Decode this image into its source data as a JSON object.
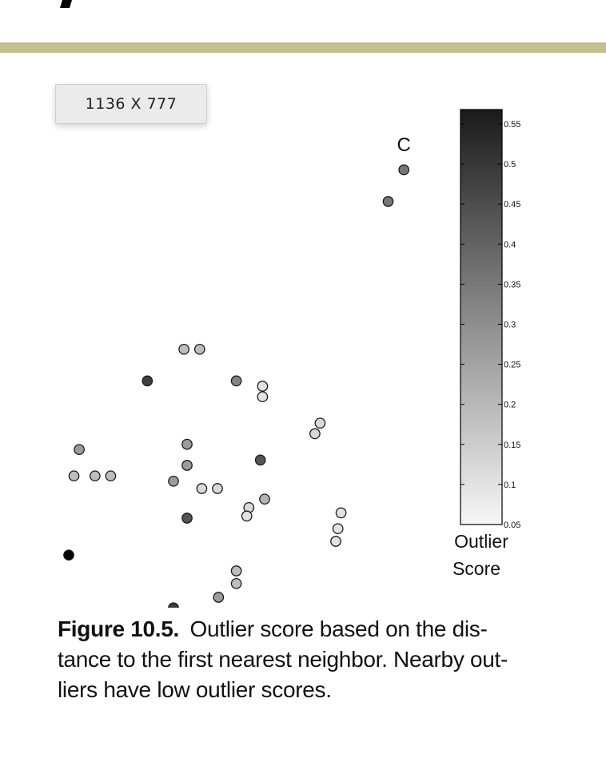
{
  "badge": {
    "label": "1136 X 777"
  },
  "chart_data": {
    "type": "scatter",
    "title": "",
    "xlabel": "",
    "ylabel": "",
    "grid": false,
    "annotations": [
      {
        "text": "C",
        "x": 3.05,
        "y": 8.6
      }
    ],
    "colorbar": {
      "label_line1": "Outlier",
      "label_line2": "Score",
      "min": 0.05,
      "max": 0.57,
      "ticks": [
        0.05,
        0.1,
        0.15,
        0.2,
        0.25,
        0.3,
        0.35,
        0.4,
        0.45,
        0.5,
        0.55
      ],
      "tick_labels": [
        "0.05",
        "0.1",
        "0.15",
        "0.2",
        "0.25",
        "0.3",
        "0.35",
        "0.4",
        "0.45",
        "0.5",
        "0.55"
      ],
      "colormap": "gray-reversed"
    },
    "points": [
      {
        "x": 3.05,
        "y": 8.4,
        "score": 0.33
      },
      {
        "x": 2.9,
        "y": 8.1,
        "score": 0.33
      },
      {
        "x": 0.95,
        "y": 6.7,
        "score": 0.18
      },
      {
        "x": 1.1,
        "y": 6.7,
        "score": 0.18
      },
      {
        "x": 0.6,
        "y": 6.4,
        "score": 0.45
      },
      {
        "x": 1.45,
        "y": 6.4,
        "score": 0.3
      },
      {
        "x": 1.7,
        "y": 6.35,
        "score": 0.1
      },
      {
        "x": 1.7,
        "y": 6.25,
        "score": 0.1
      },
      {
        "x": 2.25,
        "y": 6.0,
        "score": 0.12
      },
      {
        "x": 2.2,
        "y": 5.9,
        "score": 0.12
      },
      {
        "x": -0.05,
        "y": 5.75,
        "score": 0.25
      },
      {
        "x": 0.98,
        "y": 5.8,
        "score": 0.25
      },
      {
        "x": 1.68,
        "y": 5.65,
        "score": 0.4
      },
      {
        "x": -0.1,
        "y": 5.5,
        "score": 0.18
      },
      {
        "x": 0.1,
        "y": 5.5,
        "score": 0.18
      },
      {
        "x": 0.25,
        "y": 5.5,
        "score": 0.18
      },
      {
        "x": 0.98,
        "y": 5.6,
        "score": 0.25
      },
      {
        "x": 0.85,
        "y": 5.45,
        "score": 0.25
      },
      {
        "x": 1.12,
        "y": 5.38,
        "score": 0.12
      },
      {
        "x": 1.27,
        "y": 5.38,
        "score": 0.12
      },
      {
        "x": 1.72,
        "y": 5.28,
        "score": 0.2
      },
      {
        "x": 1.57,
        "y": 5.2,
        "score": 0.12
      },
      {
        "x": 1.55,
        "y": 5.12,
        "score": 0.1
      },
      {
        "x": 2.45,
        "y": 5.15,
        "score": 0.1
      },
      {
        "x": 0.98,
        "y": 5.1,
        "score": 0.4
      },
      {
        "x": 2.42,
        "y": 5.0,
        "score": 0.1
      },
      {
        "x": 2.4,
        "y": 4.88,
        "score": 0.1
      },
      {
        "x": -0.15,
        "y": 4.75,
        "score": 0.57
      },
      {
        "x": 1.45,
        "y": 4.6,
        "score": 0.18
      },
      {
        "x": 1.45,
        "y": 4.48,
        "score": 0.18
      },
      {
        "x": 1.28,
        "y": 4.35,
        "score": 0.25
      },
      {
        "x": 0.85,
        "y": 4.25,
        "score": 0.45
      }
    ]
  },
  "caption": {
    "label": "Figure 10.5.",
    "line1": "Outlier score based on the dis-",
    "line2": "tance to the first nearest neighbor. Nearby out-",
    "line3": "liers have low outlier scores."
  }
}
